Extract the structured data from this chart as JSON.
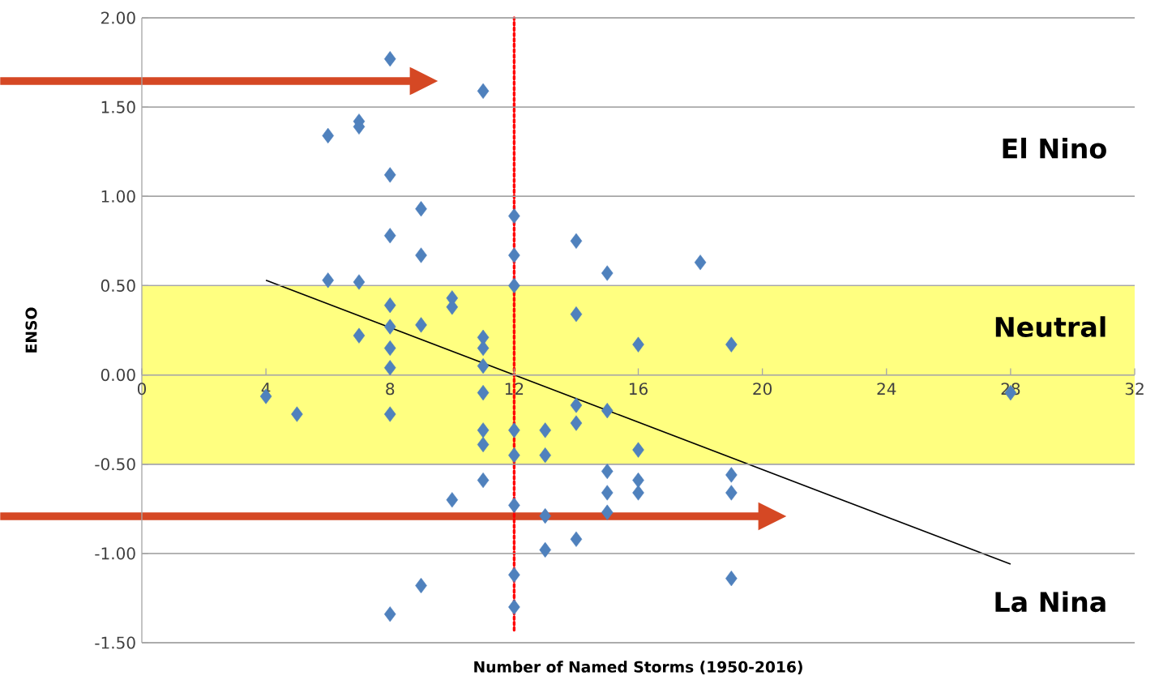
{
  "chart_data": {
    "type": "scatter",
    "xlabel": "Number of Named Storms (1950-2016)",
    "ylabel": "ENSO",
    "xlim": [
      0,
      32
    ],
    "xticks": [
      0,
      4,
      8,
      12,
      16,
      20,
      24,
      28,
      32
    ],
    "ylim": [
      -1.5,
      2.0
    ],
    "yticks": [
      {
        "value": -1.5,
        "label": "-1.50"
      },
      {
        "value": -1.0,
        "label": "-1.00"
      },
      {
        "value": -0.5,
        "label": "-0.50"
      },
      {
        "value": 0,
        "label": "0.00"
      },
      {
        "value": 0.5,
        "label": "0.50"
      },
      {
        "value": 1.0,
        "label": "1.00"
      },
      {
        "value": 1.5,
        "label": "1.50"
      },
      {
        "value": 2.0,
        "label": "2.00"
      }
    ],
    "grid": "y",
    "marker": "diamond",
    "series": [
      {
        "type": "scatter",
        "color": "#4f81bd",
        "x": [
          4,
          5,
          6,
          6,
          7,
          7,
          7,
          7,
          8,
          8,
          8,
          8,
          8,
          8,
          8,
          8,
          8,
          9,
          9,
          9,
          9,
          10,
          10,
          10,
          11,
          11,
          11,
          11,
          11,
          11,
          11,
          11,
          12,
          12,
          12,
          12,
          12,
          12,
          12,
          12,
          13,
          13,
          13,
          13,
          14,
          14,
          14,
          14,
          14,
          15,
          15,
          15,
          15,
          15,
          16,
          16,
          16,
          16,
          18,
          19,
          19,
          19,
          19,
          28
        ],
        "values": [
          -0.12,
          -0.22,
          1.34,
          0.53,
          1.42,
          1.39,
          0.52,
          0.22,
          1.77,
          1.12,
          0.78,
          0.39,
          0.27,
          0.15,
          0.04,
          -0.22,
          -1.34,
          0.93,
          0.67,
          0.28,
          -1.18,
          0.43,
          0.38,
          -0.7,
          1.59,
          0.21,
          0.15,
          0.05,
          -0.1,
          -0.31,
          -0.39,
          -0.59,
          0.89,
          0.67,
          0.5,
          -0.31,
          -0.45,
          -0.73,
          -1.12,
          -1.3,
          -0.31,
          -0.45,
          -0.79,
          -0.98,
          0.75,
          0.34,
          -0.17,
          -0.27,
          -0.92,
          0.57,
          -0.2,
          -0.54,
          -0.66,
          -0.77,
          0.17,
          -0.42,
          -0.59,
          -0.66,
          0.63,
          0.17,
          -0.56,
          -0.66,
          -1.14,
          -0.1
        ]
      },
      {
        "type": "line",
        "color": "#000000",
        "marker": "none",
        "x": [
          4,
          28
        ],
        "values": [
          0.53,
          -1.06
        ]
      }
    ],
    "ref_lines": [
      {
        "axis": "x",
        "value": 12,
        "color": "#ff0000",
        "line_style": "dotted"
      }
    ],
    "bands": [
      {
        "axis": "y",
        "from": -0.5,
        "to": 0.5,
        "color": "#ffff80"
      }
    ],
    "annotations": [
      "El Nino",
      "Neutral",
      "La Nina"
    ]
  }
}
